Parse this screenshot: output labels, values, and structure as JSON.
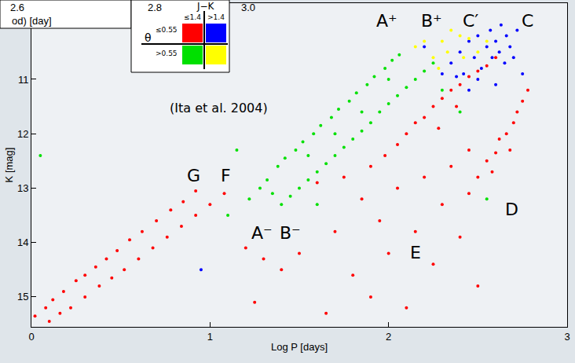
{
  "chart_data": {
    "type": "scatter",
    "xlabel": "Log P [days]",
    "ylabel": "K [mag]",
    "xlim": [
      0,
      3
    ],
    "ylim": [
      15.55,
      9.6
    ],
    "xticks": [
      0,
      1,
      2,
      3
    ],
    "yticks": [
      11,
      12,
      13,
      14,
      15
    ],
    "grid": false,
    "series": [
      {
        "color": "#ff0000",
        "x": [
          0.02,
          0.08,
          0.12,
          0.18,
          0.25,
          0.3,
          0.36,
          0.42,
          0.48,
          0.55,
          0.62,
          0.7,
          0.78,
          0.85,
          0.92,
          0.1,
          0.16,
          0.22,
          0.3,
          0.38,
          0.45,
          0.52,
          0.6,
          0.68,
          0.76,
          0.84,
          0.92,
          1.0,
          1.08,
          1.9,
          1.98,
          2.05,
          2.1,
          2.15,
          2.2,
          2.25,
          2.3,
          2.35,
          2.4,
          2.45,
          2.5,
          2.55,
          2.6,
          2.38,
          2.28,
          2.45,
          2.5,
          2.55,
          2.6,
          2.62,
          2.66,
          2.7,
          2.72,
          2.75,
          2.78,
          2.58,
          2.68,
          1.5,
          1.6,
          1.7,
          1.75,
          1.8,
          1.85,
          1.9,
          1.95,
          2.0,
          2.05,
          2.1,
          2.15,
          2.2,
          2.25,
          2.3,
          2.35,
          2.4,
          2.45,
          1.65,
          2.5,
          1.2,
          1.3,
          1.4,
          1.25
        ],
        "y": [
          15.35,
          15.2,
          15.05,
          14.9,
          14.7,
          14.6,
          14.45,
          14.3,
          14.15,
          13.95,
          13.8,
          13.6,
          13.4,
          13.25,
          13.05,
          15.45,
          15.3,
          15.2,
          15.0,
          14.8,
          14.65,
          14.5,
          14.3,
          14.1,
          13.9,
          13.7,
          13.5,
          13.3,
          13.1,
          12.6,
          12.4,
          12.2,
          12.0,
          11.8,
          11.7,
          11.5,
          11.35,
          11.2,
          11.1,
          10.95,
          10.85,
          10.75,
          10.6,
          11.5,
          11.9,
          13.1,
          12.8,
          12.5,
          12.35,
          12.1,
          12.0,
          11.8,
          11.6,
          11.4,
          11.2,
          12.7,
          12.3,
          14.2,
          12.9,
          13.8,
          12.8,
          14.6,
          13.2,
          15.0,
          13.6,
          14.2,
          13.0,
          15.2,
          13.8,
          12.8,
          14.4,
          13.3,
          12.6,
          13.9,
          12.3,
          15.3,
          14.8,
          14.1,
          14.3,
          14.5,
          15.1
        ]
      },
      {
        "color": "#0000ff",
        "x": [
          2.35,
          2.4,
          2.42,
          2.45,
          2.48,
          2.5,
          2.52,
          2.55,
          2.57,
          2.58,
          2.6,
          2.62,
          2.63,
          2.65,
          2.66,
          2.68,
          2.7,
          2.72,
          2.5,
          2.45,
          2.3,
          2.6,
          2.75,
          2.2,
          0.95,
          2.38
        ],
        "y": [
          10.7,
          10.5,
          10.9,
          10.3,
          10.6,
          10.2,
          10.8,
          10.4,
          10.1,
          10.6,
          10.3,
          10.5,
          10.0,
          10.7,
          10.2,
          10.4,
          10.6,
          10.1,
          11.0,
          11.2,
          10.9,
          11.1,
          10.9,
          10.4,
          14.5,
          10.95
        ]
      },
      {
        "color": "#00e000",
        "x": [
          1.22,
          1.28,
          1.32,
          1.38,
          1.42,
          1.48,
          1.52,
          1.58,
          1.62,
          1.68,
          1.72,
          1.78,
          1.82,
          1.88,
          1.92,
          1.98,
          2.02,
          2.06,
          1.4,
          1.45,
          1.5,
          1.55,
          1.6,
          1.65,
          1.7,
          1.75,
          1.8,
          1.85,
          1.9,
          1.95,
          2.0,
          2.05,
          2.1,
          2.15,
          2.2,
          2.25,
          1.35,
          1.55,
          1.7,
          1.85,
          2.0,
          1.6,
          1.1,
          1.15,
          2.3,
          2.4,
          0.05,
          2.55
        ],
        "y": [
          13.2,
          13.0,
          12.85,
          12.6,
          12.45,
          12.3,
          12.15,
          12.0,
          11.85,
          11.7,
          11.55,
          11.4,
          11.25,
          11.1,
          10.95,
          10.8,
          10.65,
          10.55,
          13.3,
          13.15,
          13.0,
          12.85,
          12.7,
          12.55,
          12.4,
          12.25,
          12.1,
          11.95,
          11.8,
          11.6,
          11.45,
          11.3,
          11.15,
          11.0,
          10.85,
          10.7,
          13.1,
          12.4,
          12.0,
          11.6,
          11.0,
          13.3,
          13.5,
          12.3,
          11.2,
          11.6,
          12.4,
          13.2
        ]
      },
      {
        "color": "#ffff00",
        "x": [
          2.15,
          2.2,
          2.25,
          2.3,
          2.35,
          2.4,
          2.45,
          2.5,
          2.28,
          2.33,
          2.55,
          2.42
        ],
        "y": [
          10.4,
          10.3,
          10.6,
          10.3,
          10.1,
          10.2,
          10.25,
          10.5,
          10.8,
          10.5,
          10.3,
          10.6
        ]
      }
    ],
    "legend_table": {
      "column_title": "J−K",
      "row_title": "θ",
      "columns": [
        "≤1.4",
        ">1.4"
      ],
      "rows": [
        "≤0.55",
        ">0.55"
      ],
      "cells": [
        [
          0,
          1
        ],
        [
          2,
          3
        ]
      ]
    },
    "annotations": [
      {
        "text": "A⁺",
        "x": 1.99,
        "y": 9.92
      },
      {
        "text": "B⁺",
        "x": 2.24,
        "y": 9.92
      },
      {
        "text": "C′",
        "x": 2.46,
        "y": 9.92
      },
      {
        "text": "C",
        "x": 2.78,
        "y": 9.92
      },
      {
        "text": "G",
        "x": 0.91,
        "y": 12.77
      },
      {
        "text": "F",
        "x": 1.09,
        "y": 12.77
      },
      {
        "text": "A⁻",
        "x": 1.29,
        "y": 13.82
      },
      {
        "text": "B⁻",
        "x": 1.45,
        "y": 13.82
      },
      {
        "text": "E",
        "x": 2.15,
        "y": 14.18
      },
      {
        "text": "D",
        "x": 2.69,
        "y": 13.39
      },
      {
        "text": "(Ita et al. 2004)",
        "x": 1.05,
        "y": 11.53
      }
    ],
    "inset_fragment": {
      "texts": [
        "2.6",
        "2.8",
        "3.0",
        "od) [day]"
      ]
    }
  }
}
